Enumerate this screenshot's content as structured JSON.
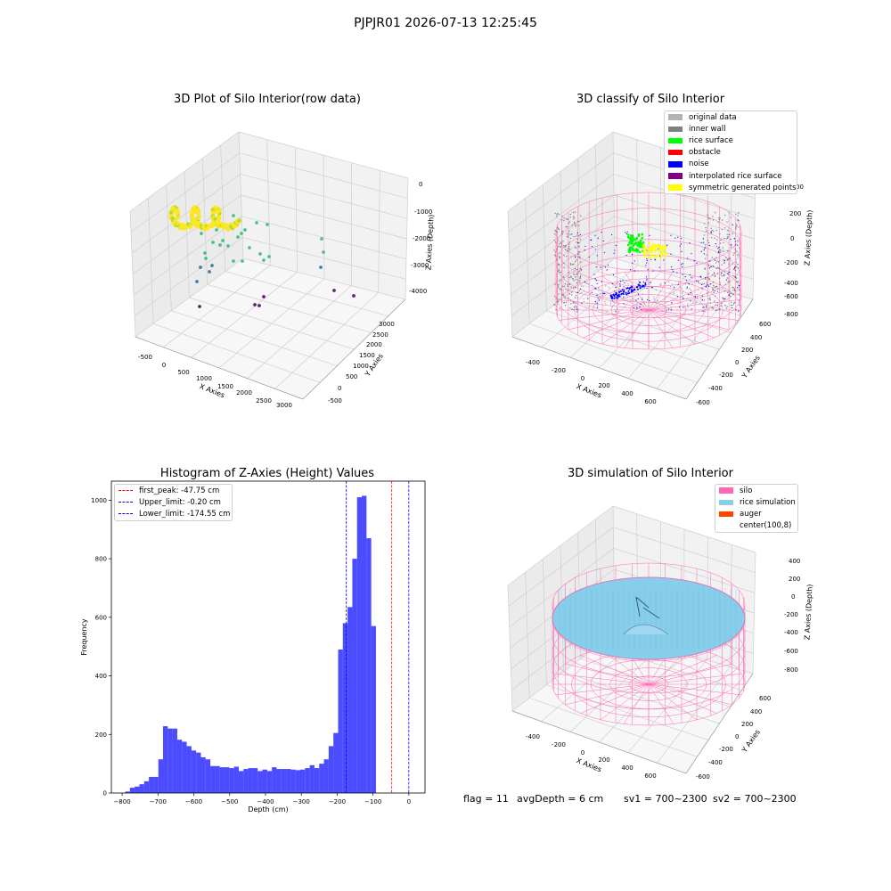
{
  "figure": {
    "suptitle": "PJPJR01 2026-07-13 12:25:45",
    "footer": {
      "flag": "flag = 11",
      "avg_depth": "avgDepth = 6 cm",
      "sv1": "sv1 = 700~2300",
      "sv2": "sv2 = 700~2300"
    }
  },
  "panels": {
    "raw": {
      "title": "3D Plot of Silo Interior(row data)",
      "xlabel": "X Axies",
      "ylabel": "Y Axies",
      "zlabel": "Z Axies (Depth)",
      "xticks": [
        "-500",
        "0",
        "500",
        "1000",
        "1500",
        "2000",
        "2500",
        "3000"
      ],
      "yticks": [
        "-500",
        "0",
        "500",
        "1000",
        "1500",
        "2000",
        "2500",
        "3000"
      ],
      "zticks": [
        "0",
        "-1000",
        "-2000",
        "-3000",
        "-4000"
      ],
      "colormap": [
        "#440154",
        "#31688e",
        "#35b779",
        "#fde725"
      ]
    },
    "classify": {
      "title": "3D classify of Silo Interior",
      "xlabel": "X Axies",
      "ylabel": "Y Axies",
      "zlabel": "Z Axies (Depth)",
      "xticks": [
        "-400",
        "-200",
        "0",
        "200",
        "400",
        "600"
      ],
      "yticks": [
        "-600",
        "-400",
        "-200",
        "0",
        "200",
        "400",
        "600"
      ],
      "zticks": [
        "200",
        "0",
        "-200",
        "-400",
        "-600",
        "-800"
      ],
      "zticks_partial": "00",
      "legend": [
        {
          "label": "original data",
          "color": "#b3b3b3"
        },
        {
          "label": "inner wall",
          "color": "#808080"
        },
        {
          "label": "rice surface",
          "color": "#00ff00"
        },
        {
          "label": "obstacle",
          "color": "#ff0000"
        },
        {
          "label": "noise",
          "color": "#0000ff"
        },
        {
          "label": "interpolated rice surface",
          "color": "#800080"
        },
        {
          "label": "symmetric generated points",
          "color": "#ffff00"
        }
      ]
    },
    "simulation": {
      "title": "3D simulation of Silo Interior",
      "xlabel": "X Axies",
      "ylabel": "Y Axies",
      "zlabel": "Z Axies (Depth)",
      "xticks": [
        "-400",
        "-200",
        "0",
        "200",
        "400",
        "600"
      ],
      "yticks": [
        "-600",
        "-400",
        "-200",
        "0",
        "200",
        "400",
        "600"
      ],
      "zticks": [
        "400",
        "200",
        "0",
        "-200",
        "-400",
        "-600",
        "-800"
      ],
      "legend": [
        {
          "label": "silo",
          "color": "#ff69b4"
        },
        {
          "label": "rice simulation",
          "color": "#87ceeb"
        },
        {
          "label": "auger",
          "color": "#ff4500"
        },
        {
          "label": "center(100,8)",
          "color": "#ffffff"
        }
      ]
    }
  },
  "chart_data": {
    "type": "bar",
    "title": "Histogram of Z-Axies (Height) Values",
    "xlabel": "Depth (cm)",
    "ylabel": "Frequency",
    "xlim": [
      -830,
      45
    ],
    "ylim": [
      0,
      1065
    ],
    "xticks": [
      -800,
      -700,
      -600,
      -500,
      -400,
      -300,
      -200,
      -100,
      0
    ],
    "yticks": [
      0,
      200,
      400,
      600,
      800,
      1000
    ],
    "bar_color": "#0000ff",
    "bin_width": 13.2,
    "bins_start": [
      -791.4,
      -778.2,
      -765.0,
      -751.8,
      -738.6,
      -725.4,
      -712.2,
      -699.0,
      -685.8,
      -672.6,
      -659.4,
      -646.2,
      -633.0,
      -619.8,
      -606.6,
      -593.4,
      -580.2,
      -567.0,
      -553.8,
      -540.6,
      -527.4,
      -514.2,
      -501.0,
      -487.8,
      -474.6,
      -461.4,
      -448.2,
      -435.0,
      -421.8,
      -408.6,
      -395.4,
      -382.2,
      -369.0,
      -355.8,
      -342.6,
      -329.4,
      -316.2,
      -303.0,
      -289.8,
      -276.6,
      -263.4,
      -250.2,
      -237.0,
      -223.8,
      -210.6,
      -197.4,
      -184.2,
      -171.0,
      -157.8,
      -144.6,
      -131.4,
      -118.2,
      -105.0,
      -91.8,
      -78.6,
      -65.4,
      -52.2,
      -39.0,
      -25.8,
      -12.6
    ],
    "frequencies": [
      5,
      18,
      22,
      30,
      40,
      55,
      55,
      115,
      228,
      220,
      220,
      182,
      175,
      160,
      145,
      138,
      122,
      115,
      92,
      92,
      88,
      88,
      85,
      90,
      75,
      82,
      85,
      85,
      75,
      80,
      75,
      88,
      82,
      82,
      82,
      80,
      78,
      80,
      85,
      95,
      85,
      100,
      115,
      160,
      205,
      490,
      580,
      635,
      800,
      1010,
      1015,
      870,
      570,
      0,
      0,
      0,
      0,
      0,
      0,
      0
    ],
    "lines": [
      {
        "label": "first_peak: -47.75 cm",
        "x": -47.75,
        "color": "#ff0000"
      },
      {
        "label": "Upper_limit: -0.20 cm",
        "x": -0.2,
        "color": "#0000ff"
      },
      {
        "label": "Lower_limit: -174.55 cm",
        "x": -174.55,
        "color": "#0000ff"
      }
    ]
  }
}
